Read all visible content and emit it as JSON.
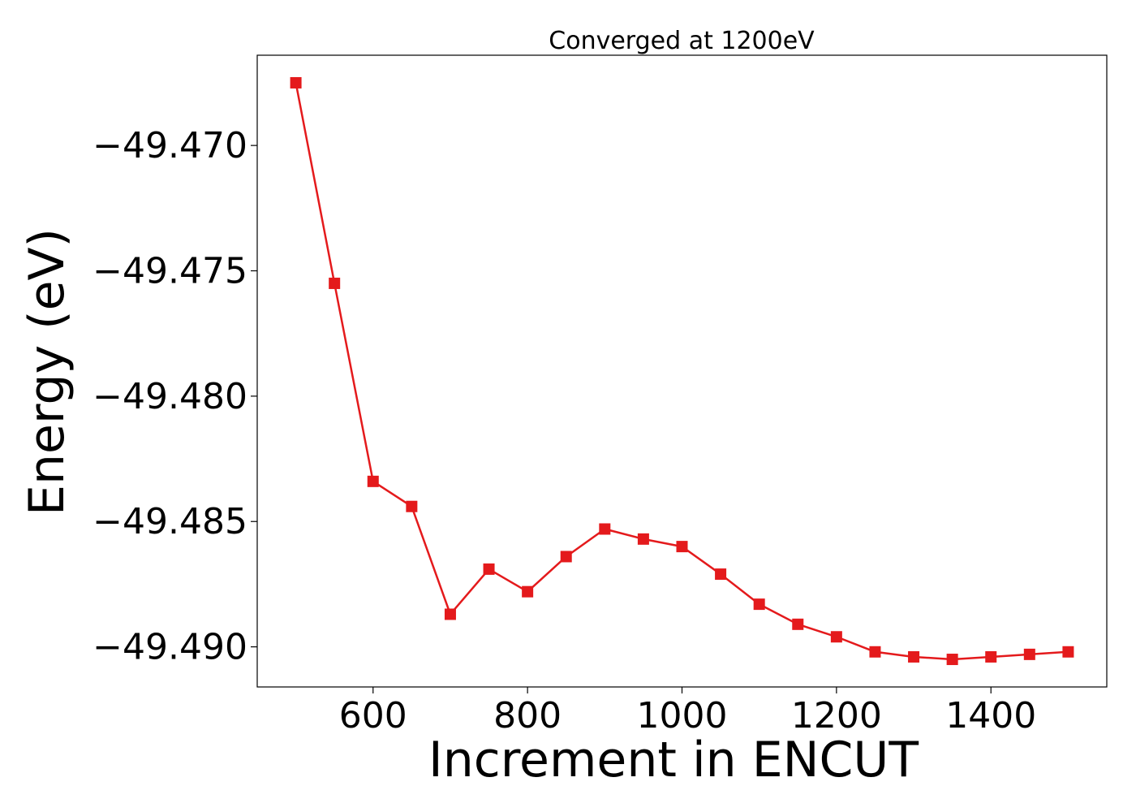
{
  "chart_data": {
    "type": "line",
    "title": "Converged at 1200eV",
    "xlabel": "Increment in ENCUT",
    "ylabel": "Energy (eV)",
    "xlim": [
      450,
      1550
    ],
    "ylim": [
      -49.4916,
      -49.4664
    ],
    "x_ticks": [
      600,
      800,
      1000,
      1200,
      1400
    ],
    "y_ticks": [
      -49.47,
      -49.475,
      -49.48,
      -49.485,
      -49.49
    ],
    "x_tick_labels": [
      "600",
      "800",
      "1000",
      "1200",
      "1400"
    ],
    "y_tick_labels": [
      "−49.470",
      "−49.475",
      "−49.480",
      "−49.485",
      "−49.490"
    ],
    "grid": false,
    "series": [
      {
        "color": "#e41a1c",
        "marker": "square",
        "x": [
          500,
          550,
          600,
          650,
          700,
          750,
          800,
          850,
          900,
          950,
          1000,
          1050,
          1100,
          1150,
          1200,
          1250,
          1300,
          1350,
          1400,
          1450,
          1500
        ],
        "y": [
          -49.4675,
          -49.4755,
          -49.4834,
          -49.4844,
          -49.4887,
          -49.4869,
          -49.4878,
          -49.4864,
          -49.4853,
          -49.4857,
          -49.486,
          -49.4871,
          -49.4883,
          -49.4891,
          -49.4896,
          -49.4902,
          -49.4904,
          -49.4905,
          -49.4904,
          -49.4903,
          -49.4902
        ]
      }
    ]
  }
}
